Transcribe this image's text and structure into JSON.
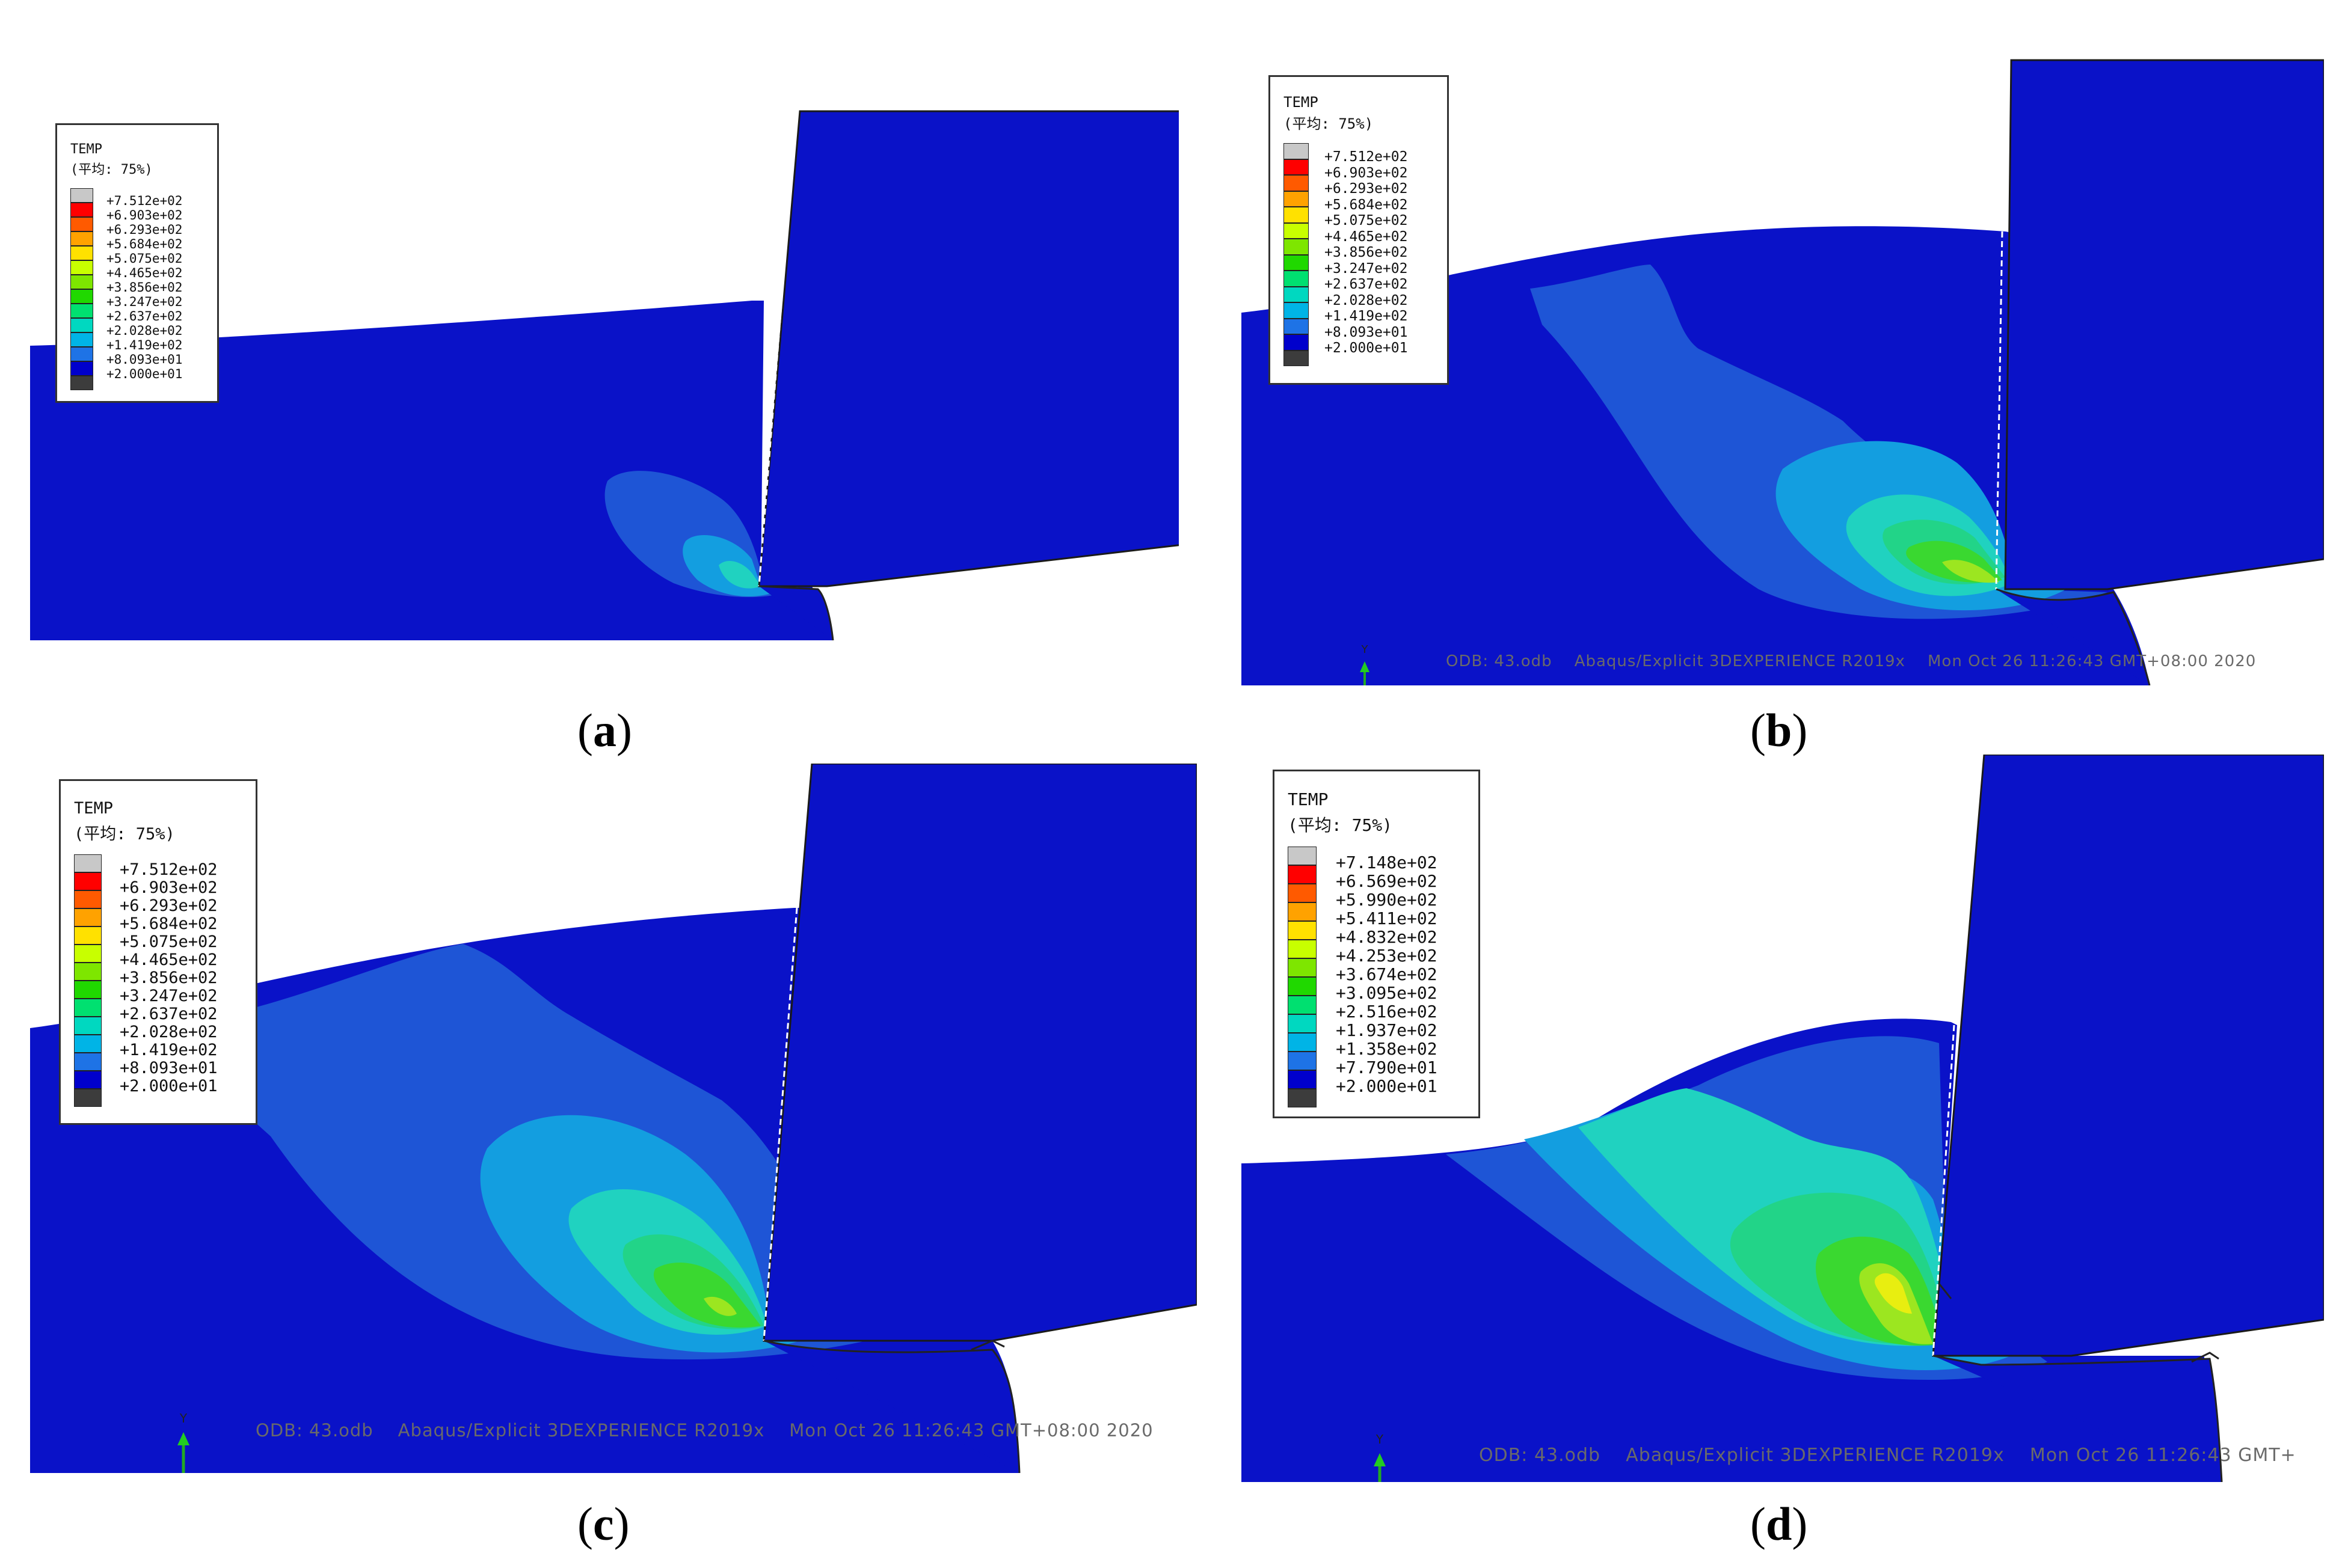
{
  "legend_a_b_c": {
    "title": "TEMP",
    "subtitle": "(平均: 75%)",
    "values": [
      "+7.512e+02",
      "+6.903e+02",
      "+6.293e+02",
      "+5.684e+02",
      "+5.075e+02",
      "+4.465e+02",
      "+3.856e+02",
      "+3.247e+02",
      "+2.637e+02",
      "+2.028e+02",
      "+1.419e+02",
      "+8.093e+01",
      "+2.000e+01"
    ]
  },
  "legend_d": {
    "title": "TEMP",
    "subtitle": "(平均: 75%)",
    "values": [
      "+7.148e+02",
      "+6.569e+02",
      "+5.990e+02",
      "+5.411e+02",
      "+4.832e+02",
      "+4.253e+02",
      "+3.674e+02",
      "+3.095e+02",
      "+2.516e+02",
      "+1.937e+02",
      "+1.358e+02",
      "+7.790e+01",
      "+2.000e+01"
    ]
  },
  "colors": {
    "scale": [
      "#c8c8c8",
      "#ff0000",
      "#ff5a00",
      "#ffa200",
      "#ffe100",
      "#c8ff00",
      "#7ee600",
      "#20d800",
      "#00e070",
      "#00d8c0",
      "#00b4e6",
      "#1e73e6",
      "#0000cc",
      "#3c3c3c"
    ],
    "workpiece": "#0a12c8",
    "zone1": "#1e55d6",
    "zone2": "#139ee0",
    "zone3": "#20d2c0",
    "zone4": "#22d488",
    "zone5": "#3ad830",
    "zone6": "#9ce620",
    "zone7": "#e8ee10"
  },
  "footer": {
    "odb": "ODB: 43.odb",
    "solver": "Abaqus/Explicit 3DEXPERIENCE R2019x",
    "date_b_c": "Mon Oct 26 11:26:43 GMT+08:00 2020",
    "date_d": "Mon Oct 26 11:26:43 GMT+"
  },
  "axis": {
    "label": "Y"
  },
  "captions": {
    "a": {
      "open": "(",
      "letter": "a",
      "close": ")"
    },
    "b": {
      "open": "(",
      "letter": "b",
      "close": ")"
    },
    "c": {
      "open": "(",
      "letter": "c",
      "close": ")"
    },
    "d": {
      "open": "(",
      "letter": "d",
      "close": ")"
    }
  }
}
